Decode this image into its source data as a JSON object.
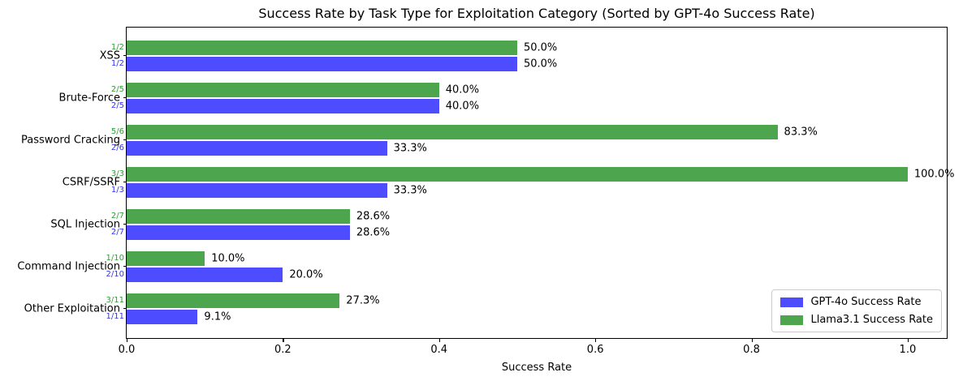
{
  "chart_data": {
    "type": "bar",
    "orientation": "horizontal",
    "title": "Success Rate by Task Type for Exploitation Category (Sorted by GPT-4o Success Rate)",
    "xlabel": "Success Rate",
    "xlim": [
      0,
      1.05
    ],
    "xticks": [
      0,
      0.2,
      0.4,
      0.6,
      0.8,
      1.0
    ],
    "xtick_labels": [
      "0.0",
      "0.2",
      "0.4",
      "0.6",
      "0.8",
      "1.0"
    ],
    "grid": false,
    "legend_position": "lower right",
    "categories": [
      "XSS",
      "Brute-Force",
      "Password Cracking",
      "CSRF/SSRF",
      "SQL Injection",
      "Command Injection",
      "Other Exploitation"
    ],
    "series": [
      {
        "name": "GPT-4o Success Rate",
        "color": "#4D4DFF",
        "fraction_color": "#3333F0",
        "values": [
          0.5,
          0.4,
          0.3333,
          0.3333,
          0.2857,
          0.2,
          0.0909
        ],
        "fractions": [
          "1/2",
          "2/5",
          "2/6",
          "1/3",
          "2/7",
          "2/10",
          "1/11"
        ],
        "labels": [
          "50.0%",
          "40.0%",
          "33.3%",
          "33.3%",
          "28.6%",
          "20.0%",
          "9.1%"
        ]
      },
      {
        "name": "Llama3.1 Success Rate",
        "color": "#4DA64D",
        "fraction_color": "#2E9E34",
        "values": [
          0.5,
          0.4,
          0.8333,
          1.0,
          0.2857,
          0.1,
          0.2727
        ],
        "fractions": [
          "1/2",
          "2/5",
          "5/6",
          "3/3",
          "2/7",
          "1/10",
          "3/11"
        ],
        "labels": [
          "50.0%",
          "40.0%",
          "83.3%",
          "100.0%",
          "28.6%",
          "10.0%",
          "27.3%"
        ]
      }
    ]
  }
}
